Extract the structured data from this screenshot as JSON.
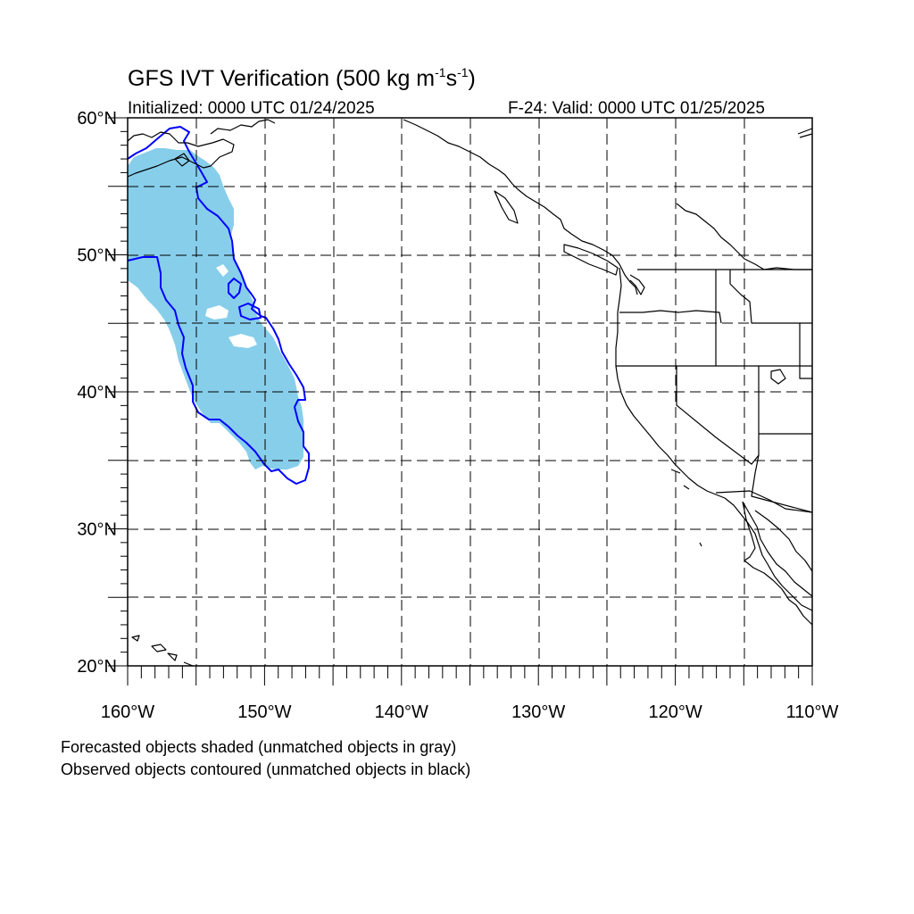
{
  "title": {
    "text_main": "GFS IVT Verification (500 kg m",
    "sup1": "-1",
    "text_mid": "s",
    "sup2": "-1",
    "text_end": ")"
  },
  "subtitle_left": "Initialized: 0000 UTC 01/24/2025",
  "subtitle_right": "F-24: Valid: 0000 UTC 01/25/2025",
  "lat_labels": [
    {
      "value": 60,
      "text": "60°N"
    },
    {
      "value": 50,
      "text": "50°N"
    },
    {
      "value": 40,
      "text": "40°N"
    },
    {
      "value": 30,
      "text": "30°N"
    },
    {
      "value": 20,
      "text": "20°N"
    }
  ],
  "lon_labels": [
    {
      "value": -160,
      "text": "160°W"
    },
    {
      "value": -150,
      "text": "150°W"
    },
    {
      "value": -140,
      "text": "140°W"
    },
    {
      "value": -130,
      "text": "130°W"
    },
    {
      "value": -120,
      "text": "120°W"
    },
    {
      "value": -110,
      "text": "110°W"
    }
  ],
  "map_extent": {
    "lon": [
      -160,
      -110
    ],
    "lat": [
      20,
      60
    ]
  },
  "gridlines": {
    "lon": [
      -155,
      -150,
      -145,
      -140,
      -135,
      -130,
      -125,
      -120,
      -115
    ],
    "lat": [
      25,
      30,
      35,
      40,
      45,
      50,
      55
    ]
  },
  "caption": {
    "line1": "Forecasted objects shaded (unmatched objects in gray)",
    "line2": "Observed objects contoured (unmatched objects in black)"
  },
  "colors": {
    "forecast_fill": "#87ceeb",
    "observed_contour": "#0000ff",
    "coastline": "#000000",
    "grid": "#000000"
  }
}
